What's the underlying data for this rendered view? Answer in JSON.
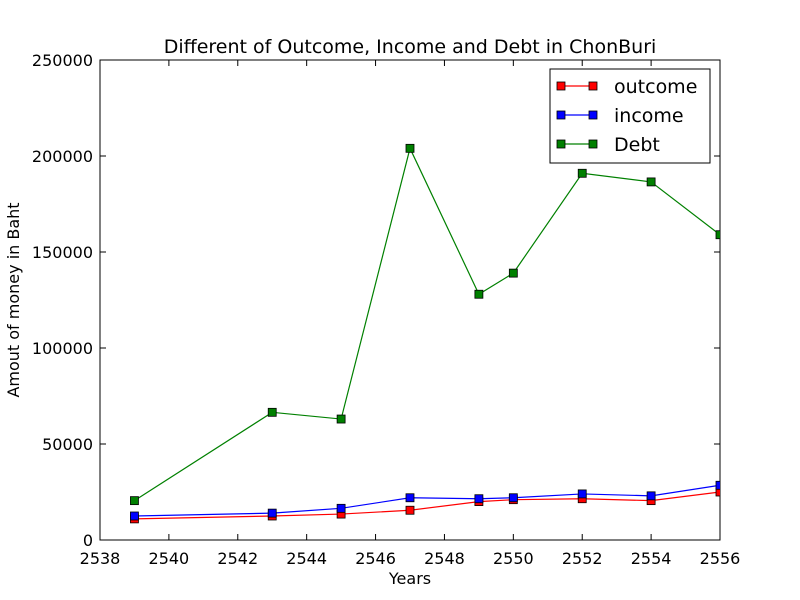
{
  "chart_data": {
    "type": "line",
    "title": "Different of Outcome, Income and Debt in ChonBuri",
    "xlabel": "Years",
    "ylabel": "Amout of money in Baht",
    "xlim": [
      2538,
      2556
    ],
    "ylim": [
      0,
      250000
    ],
    "x_ticks": [
      2538,
      2540,
      2542,
      2544,
      2546,
      2548,
      2550,
      2552,
      2554,
      2556
    ],
    "y_ticks": [
      0,
      50000,
      100000,
      150000,
      200000,
      250000
    ],
    "grid": false,
    "legend_position": "top-right",
    "x": [
      2539,
      2543,
      2545,
      2547,
      2549,
      2550,
      2552,
      2554,
      2556
    ],
    "series": [
      {
        "name": "outcome",
        "color": "#ff0000",
        "marker": "square",
        "values": [
          11000,
          12500,
          13500,
          15500,
          20000,
          21000,
          21500,
          20500,
          25000
        ]
      },
      {
        "name": "income",
        "color": "#0000ff",
        "marker": "square",
        "values": [
          12500,
          14000,
          16500,
          22000,
          21500,
          22000,
          24000,
          23000,
          28500
        ]
      },
      {
        "name": "Debt",
        "color": "#008000",
        "marker": "square",
        "values": [
          20500,
          66500,
          63000,
          204000,
          128000,
          139000,
          191000,
          186500,
          159000
        ]
      }
    ]
  }
}
